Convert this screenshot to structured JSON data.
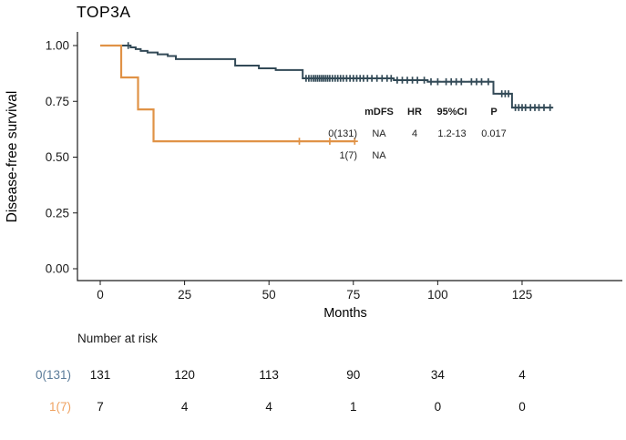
{
  "title": "TOP3A",
  "axes": {
    "y_label": "Disease-free survival",
    "x_label": "Months",
    "y_tick_labels": [
      "0.00",
      "0.25",
      "0.50",
      "0.75",
      "1.00"
    ]
  },
  "inset": {
    "headers": {
      "mdfs": "mDFS",
      "hr": "HR",
      "ci": "95%CI",
      "p": "P"
    },
    "rows": [
      {
        "label": "0(131)",
        "mdfs": "NA",
        "hr": "4",
        "ci": "1.2-13",
        "p": "0.017"
      },
      {
        "label": "1(7)",
        "mdfs": "NA",
        "hr": "",
        "ci": "",
        "p": ""
      }
    ]
  },
  "risk_table": {
    "title": "Number at risk",
    "rows": [
      {
        "label": "0(131)",
        "color": "#5a7b99",
        "counts": [
          "131",
          "120",
          "113",
          "90",
          "34",
          "4"
        ]
      },
      {
        "label": "1(7)",
        "color": "#efa261",
        "counts": [
          "7",
          "4",
          "4",
          "1",
          "0",
          "0"
        ]
      }
    ]
  },
  "chart_data": {
    "type": "line",
    "subtype": "kaplan-meier-step",
    "title": "TOP3A",
    "xlabel": "Months",
    "ylabel": "Disease-free survival",
    "xlim": [
      0,
      154
    ],
    "ylim": [
      0,
      1
    ],
    "x_ticks": [
      0,
      25,
      50,
      75,
      100,
      125
    ],
    "y_ticks": [
      0,
      0.25,
      0.5,
      0.75,
      1.0
    ],
    "grid": false,
    "legend_position": "none",
    "series": [
      {
        "name": "0(131)",
        "color": "#334a57",
        "stroke_width": 2,
        "steps": [
          [
            0,
            1.0
          ],
          [
            9,
            0.992
          ],
          [
            10.5,
            0.984
          ],
          [
            12,
            0.976
          ],
          [
            14,
            0.969
          ],
          [
            17,
            0.961
          ],
          [
            20,
            0.953
          ],
          [
            22.4,
            0.939
          ],
          [
            40,
            0.91
          ],
          [
            47,
            0.898
          ],
          [
            52,
            0.89
          ],
          [
            60,
            0.853
          ],
          [
            87,
            0.845
          ],
          [
            97,
            0.838
          ],
          [
            116.5,
            0.784
          ],
          [
            122,
            0.722
          ]
        ],
        "end_month": 134,
        "censor_months": [
          8.3,
          61,
          61.8,
          62.5,
          63.2,
          63.8,
          64.4,
          65,
          65.6,
          66.2,
          66.8,
          67.4,
          68,
          68.8,
          69.6,
          70.4,
          71.2,
          72,
          73,
          74,
          75,
          76,
          77,
          78,
          79.2,
          80.5,
          82,
          83.5,
          85,
          86.2,
          88,
          89.5,
          91,
          92.5,
          94,
          96,
          98,
          100,
          102.5,
          104,
          105.5,
          107,
          110,
          111.5,
          113,
          115,
          119,
          120,
          121,
          123,
          124,
          125,
          126,
          127.5,
          128.8,
          130,
          131.5,
          133.3
        ]
      },
      {
        "name": "1(7)",
        "color": "#e09246",
        "stroke_width": 2.2,
        "steps": [
          [
            0,
            1.0
          ],
          [
            6.2,
            0.857
          ],
          [
            11.2,
            0.714
          ],
          [
            15.8,
            0.571
          ]
        ],
        "end_month": 75.6,
        "censor_months": [
          59,
          68,
          75.4
        ]
      }
    ],
    "stats_annotation": {
      "headers": [
        "mDFS",
        "HR",
        "95%CI",
        "P"
      ],
      "rows": [
        [
          "0(131)",
          "NA",
          "4",
          "1.2-13",
          "0.017"
        ],
        [
          "1(7)",
          "NA",
          "",
          "",
          ""
        ]
      ]
    },
    "number_at_risk": {
      "times": [
        0,
        25,
        50,
        75,
        100,
        125
      ],
      "groups": [
        {
          "name": "0(131)",
          "counts": [
            131,
            120,
            113,
            90,
            34,
            4
          ]
        },
        {
          "name": "1(7)",
          "counts": [
            7,
            4,
            4,
            1,
            0,
            0
          ]
        }
      ]
    }
  }
}
